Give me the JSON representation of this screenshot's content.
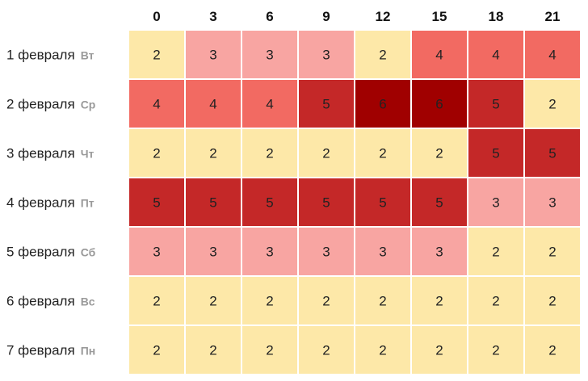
{
  "chart_data": {
    "type": "heatmap",
    "columns": [
      "0",
      "3",
      "6",
      "9",
      "12",
      "15",
      "18",
      "21"
    ],
    "rows": [
      {
        "date": "1 февраля",
        "day": "Вт",
        "values": [
          2,
          3,
          3,
          3,
          2,
          4,
          4,
          4
        ]
      },
      {
        "date": "2 февраля",
        "day": "Ср",
        "values": [
          4,
          4,
          4,
          5,
          6,
          6,
          5,
          2
        ]
      },
      {
        "date": "3 февраля",
        "day": "Чт",
        "values": [
          2,
          2,
          2,
          2,
          2,
          2,
          5,
          5
        ]
      },
      {
        "date": "4 февраля",
        "day": "Пт",
        "values": [
          5,
          5,
          5,
          5,
          5,
          5,
          3,
          3
        ]
      },
      {
        "date": "5 февраля",
        "day": "Сб",
        "values": [
          3,
          3,
          3,
          3,
          3,
          3,
          2,
          2
        ]
      },
      {
        "date": "6 февраля",
        "day": "Вс",
        "values": [
          2,
          2,
          2,
          2,
          2,
          2,
          2,
          2
        ]
      },
      {
        "date": "7 февраля",
        "day": "Пн",
        "values": [
          2,
          2,
          2,
          2,
          2,
          2,
          2,
          2
        ]
      }
    ],
    "color_scale": {
      "2": "#fde8a8",
      "3": "#f8a5a2",
      "4": "#f26a62",
      "5": "#c42828",
      "6": "#a00000"
    },
    "title": "",
    "xlabel": "",
    "ylabel": ""
  }
}
